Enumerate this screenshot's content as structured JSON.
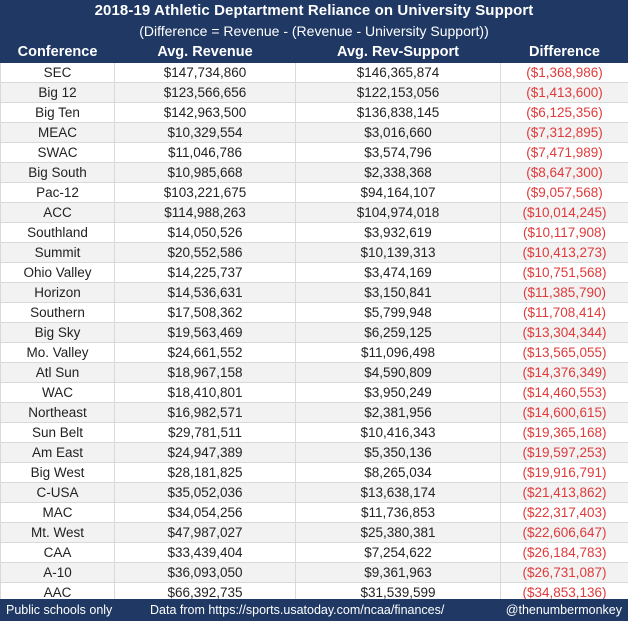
{
  "title": "2018-19 Athletic Deptartment Reliance on University Support",
  "subtitle": "(Difference = Revenue - (Revenue - University Support))",
  "footer": {
    "left": "Public schools only",
    "middle": "Data from https://sports.usatoday.com/ncaa/finances/",
    "right": "@thenumbermonkey"
  },
  "colors": {
    "header_bg": "#1f3864",
    "negative": "#e03a3a"
  },
  "chart_data": {
    "type": "table",
    "title": "2018-19 Athletic Deptartment Reliance on University Support",
    "columns": [
      "Conference",
      "Avg. Revenue",
      "Avg. Rev-Support",
      "Difference"
    ],
    "rows": [
      [
        "SEC",
        "$147,734,860",
        "$146,365,874",
        "($1,368,986)"
      ],
      [
        "Big 12",
        "$123,566,656",
        "$122,153,056",
        "($1,413,600)"
      ],
      [
        "Big Ten",
        "$142,963,500",
        "$136,838,145",
        "($6,125,356)"
      ],
      [
        "MEAC",
        "$10,329,554",
        "$3,016,660",
        "($7,312,895)"
      ],
      [
        "SWAC",
        "$11,046,786",
        "$3,574,796",
        "($7,471,989)"
      ],
      [
        "Big South",
        "$10,985,668",
        "$2,338,368",
        "($8,647,300)"
      ],
      [
        "Pac-12",
        "$103,221,675",
        "$94,164,107",
        "($9,057,568)"
      ],
      [
        "ACC",
        "$114,988,263",
        "$104,974,018",
        "($10,014,245)"
      ],
      [
        "Southland",
        "$14,050,526",
        "$3,932,619",
        "($10,117,908)"
      ],
      [
        "Summit",
        "$20,552,586",
        "$10,139,313",
        "($10,413,273)"
      ],
      [
        "Ohio Valley",
        "$14,225,737",
        "$3,474,169",
        "($10,751,568)"
      ],
      [
        "Horizon",
        "$14,536,631",
        "$3,150,841",
        "($11,385,790)"
      ],
      [
        "Southern",
        "$17,508,362",
        "$5,799,948",
        "($11,708,414)"
      ],
      [
        "Big Sky",
        "$19,563,469",
        "$6,259,125",
        "($13,304,344)"
      ],
      [
        "Mo. Valley",
        "$24,661,552",
        "$11,096,498",
        "($13,565,055)"
      ],
      [
        "Atl Sun",
        "$18,967,158",
        "$4,590,809",
        "($14,376,349)"
      ],
      [
        "WAC",
        "$18,410,801",
        "$3,950,249",
        "($14,460,553)"
      ],
      [
        "Northeast",
        "$16,982,571",
        "$2,381,956",
        "($14,600,615)"
      ],
      [
        "Sun Belt",
        "$29,781,511",
        "$10,416,343",
        "($19,365,168)"
      ],
      [
        "Am East",
        "$24,947,389",
        "$5,350,136",
        "($19,597,253)"
      ],
      [
        "Big West",
        "$28,181,825",
        "$8,265,034",
        "($19,916,791)"
      ],
      [
        "C-USA",
        "$35,052,036",
        "$13,638,174",
        "($21,413,862)"
      ],
      [
        "MAC",
        "$34,054,256",
        "$11,736,853",
        "($22,317,403)"
      ],
      [
        "Mt. West",
        "$47,987,027",
        "$25,380,381",
        "($22,606,647)"
      ],
      [
        "CAA",
        "$33,439,404",
        "$7,254,622",
        "($26,184,783)"
      ],
      [
        "A-10",
        "$36,093,050",
        "$9,361,963",
        "($26,731,087)"
      ],
      [
        "AAC",
        "$66,392,735",
        "$31,539,599",
        "($34,853,136)"
      ]
    ]
  }
}
